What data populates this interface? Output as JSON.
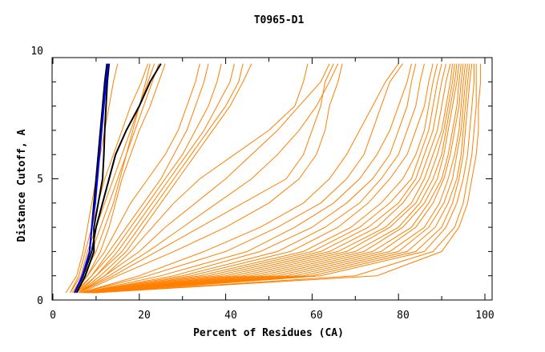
{
  "chart_data": {
    "type": "line",
    "title": "T0965-D1",
    "xlabel": "Percent of Residues (CA)",
    "ylabel": "Distance Cutoff, A",
    "xlim": [
      0,
      101.7
    ],
    "ylim": [
      0,
      10
    ],
    "xticks": [
      "0",
      "20",
      "40",
      "60",
      "80",
      "100"
    ],
    "yticks": [
      "0",
      "5",
      "10"
    ],
    "grid": false,
    "legend": "none",
    "colors": {
      "models": "#ff8000",
      "highlight_black": "#000000",
      "highlight_blue": "#0000ff"
    },
    "y_levels": [
      0.3,
      1,
      2,
      3,
      4,
      5,
      6,
      7,
      8,
      9,
      9.75
    ],
    "series": [
      {
        "color": "#ff8000",
        "x": [
          3,
          5.5,
          7,
          8,
          9,
          10,
          11,
          12,
          13,
          14,
          15
        ]
      },
      {
        "color": "#ff8000",
        "x": [
          4,
          6,
          7.5,
          9,
          10.5,
          12,
          14,
          16,
          18,
          20.5,
          22
        ]
      },
      {
        "color": "#ff8000",
        "x": [
          4,
          6.5,
          8,
          10,
          12,
          14,
          16,
          18,
          20,
          22,
          23.5
        ]
      },
      {
        "color": "#ff8000",
        "x": [
          4.5,
          7,
          9,
          11,
          13,
          15,
          17,
          18.5,
          20,
          21.5,
          22.5
        ]
      },
      {
        "color": "#ff8000",
        "x": [
          5,
          7,
          10,
          12,
          14,
          15.5,
          17,
          19,
          21,
          23,
          24.5
        ]
      },
      {
        "color": "#ff8000",
        "x": [
          5,
          8,
          11,
          13,
          14.5,
          16,
          18,
          20,
          22.5,
          24.5,
          26
        ]
      },
      {
        "color": "#ff8000",
        "x": [
          5,
          8,
          12,
          15,
          18,
          22,
          26,
          29,
          31,
          33,
          34
        ]
      },
      {
        "color": "#ff8000",
        "x": [
          5,
          9,
          13,
          17,
          21,
          25,
          28,
          31,
          33,
          35,
          36
        ]
      },
      {
        "color": "#ff8000",
        "x": [
          5.5,
          9,
          14,
          18,
          22,
          26,
          30,
          33,
          36,
          38,
          39
        ]
      },
      {
        "color": "#ff8000",
        "x": [
          5.5,
          10,
          15,
          19,
          23,
          27,
          31,
          35,
          38,
          41,
          42
        ]
      },
      {
        "color": "#ff8000",
        "x": [
          6,
          10,
          16,
          20,
          24,
          28,
          32,
          36,
          40,
          43,
          44
        ]
      },
      {
        "color": "#ff8000",
        "x": [
          6,
          11,
          17,
          21,
          25,
          29,
          33,
          37,
          41,
          44,
          46
        ]
      },
      {
        "color": "#ff8000",
        "x": [
          6,
          12,
          18,
          23,
          28,
          34,
          42,
          50,
          56,
          58,
          59
        ]
      },
      {
        "color": "#ff8000",
        "x": [
          6,
          12,
          20,
          26,
          33,
          40,
          46,
          52,
          57,
          62,
          64
        ]
      },
      {
        "color": "#ff8000",
        "x": [
          6,
          13,
          22,
          30,
          38,
          46,
          52,
          57,
          61,
          64,
          66
        ]
      },
      {
        "color": "#ff8000",
        "x": [
          6,
          14,
          24,
          34,
          44,
          54,
          58,
          60,
          62,
          63,
          65
        ]
      },
      {
        "color": "#ff8000",
        "x": [
          6.5,
          15,
          28,
          40,
          50,
          57,
          61,
          63,
          64,
          66,
          67
        ]
      },
      {
        "color": "#ff8000",
        "x": [
          6.5,
          20,
          35,
          48,
          58,
          64,
          68,
          71,
          74,
          77,
          80
        ]
      },
      {
        "color": "#ff8000",
        "x": [
          6.5,
          22,
          40,
          52,
          62,
          68,
          72,
          74,
          76,
          78,
          81
        ]
      },
      {
        "color": "#ff8000",
        "x": [
          7,
          25,
          45,
          56,
          65,
          71,
          75,
          78,
          80,
          82,
          83
        ]
      },
      {
        "color": "#ff8000",
        "x": [
          7,
          28,
          48,
          60,
          68,
          74,
          78,
          80,
          82,
          83,
          84
        ]
      },
      {
        "color": "#ff8000",
        "x": [
          7,
          30,
          52,
          63,
          71,
          76,
          80,
          82,
          84,
          85,
          86
        ]
      },
      {
        "color": "#ff8000",
        "x": [
          7,
          32,
          55,
          66,
          73,
          78,
          82,
          84,
          86,
          87,
          88
        ]
      },
      {
        "color": "#ff8000",
        "x": [
          7.5,
          34,
          58,
          69,
          76,
          81,
          84,
          86,
          87,
          88,
          89
        ]
      },
      {
        "color": "#ff8000",
        "x": [
          7.5,
          36,
          60,
          71,
          78,
          83,
          85,
          87,
          88,
          89,
          90
        ]
      },
      {
        "color": "#ff8000",
        "x": [
          7.5,
          38,
          62,
          73,
          80,
          84,
          86,
          88,
          89,
          90,
          91
        ]
      },
      {
        "color": "#ff8000",
        "x": [
          8,
          40,
          64,
          75,
          81,
          85,
          87,
          89,
          90,
          91,
          92
        ]
      },
      {
        "color": "#ff8000",
        "x": [
          8,
          42,
          66,
          77,
          83,
          86,
          88,
          90,
          91,
          92,
          92.5
        ]
      },
      {
        "color": "#ff8000",
        "x": [
          8,
          44,
          68,
          78,
          84,
          87,
          89,
          90.5,
          91.5,
          92.5,
          93
        ]
      },
      {
        "color": "#ff8000",
        "x": [
          8,
          46,
          70,
          80,
          85,
          88,
          90,
          91,
          92,
          93,
          93.5
        ]
      },
      {
        "color": "#ff8000",
        "x": [
          8.5,
          48,
          72,
          81,
          86,
          89,
          90.5,
          91.5,
          92.5,
          93.5,
          94
        ]
      },
      {
        "color": "#ff8000",
        "x": [
          8.5,
          50,
          74,
          83,
          87,
          90,
          91.5,
          92.5,
          93.5,
          94,
          94.5
        ]
      },
      {
        "color": "#ff8000",
        "x": [
          8.5,
          52,
          76,
          84,
          88,
          90.5,
          92,
          93,
          94,
          94.5,
          95
        ]
      },
      {
        "color": "#ff8000",
        "x": [
          9,
          54,
          78,
          86,
          89.5,
          91.5,
          93,
          94,
          94.5,
          95,
          95.5
        ]
      },
      {
        "color": "#ff8000",
        "x": [
          9,
          56,
          80,
          87,
          90.5,
          92.5,
          93.5,
          94.5,
          95,
          95.5,
          96
        ]
      },
      {
        "color": "#ff8000",
        "x": [
          9,
          58,
          82,
          88.5,
          91.5,
          93.5,
          94.5,
          95,
          95.5,
          96,
          96.5
        ]
      },
      {
        "color": "#ff8000",
        "x": [
          9.5,
          60,
          84,
          90,
          92.5,
          94,
          95,
          95.5,
          96,
          96.5,
          97
        ]
      },
      {
        "color": "#ff8000",
        "x": [
          9.5,
          62,
          86,
          91,
          93.5,
          95,
          96,
          96.5,
          97,
          97.5,
          97.5
        ]
      },
      {
        "color": "#ff8000",
        "x": [
          10,
          70,
          88,
          93,
          95,
          96,
          97,
          97.5,
          98,
          98,
          98
        ]
      },
      {
        "color": "#ff8000",
        "x": [
          10,
          75,
          90,
          94,
          96,
          97,
          98,
          98.5,
          98.5,
          99,
          99
        ]
      },
      {
        "color": "#000000",
        "x": [
          5,
          7,
          8.5,
          9,
          9.5,
          10,
          10.5,
          11,
          11.5,
          12,
          12.5
        ]
      },
      {
        "color": "#000000",
        "x": [
          5.5,
          7.5,
          9.5,
          9.5,
          10.5,
          11.5,
          11.8,
          12,
          12.3,
          12.6,
          13
        ]
      },
      {
        "color": "#000000",
        "x": [
          5,
          7,
          9,
          10,
          11.5,
          13,
          14.5,
          17,
          20,
          22.5,
          25
        ]
      },
      {
        "color": "#0000ff",
        "x": [
          5,
          6.8,
          8.5,
          9,
          9.8,
          10.3,
          10.8,
          11.3,
          11.8,
          12.3,
          12.8
        ]
      }
    ]
  }
}
